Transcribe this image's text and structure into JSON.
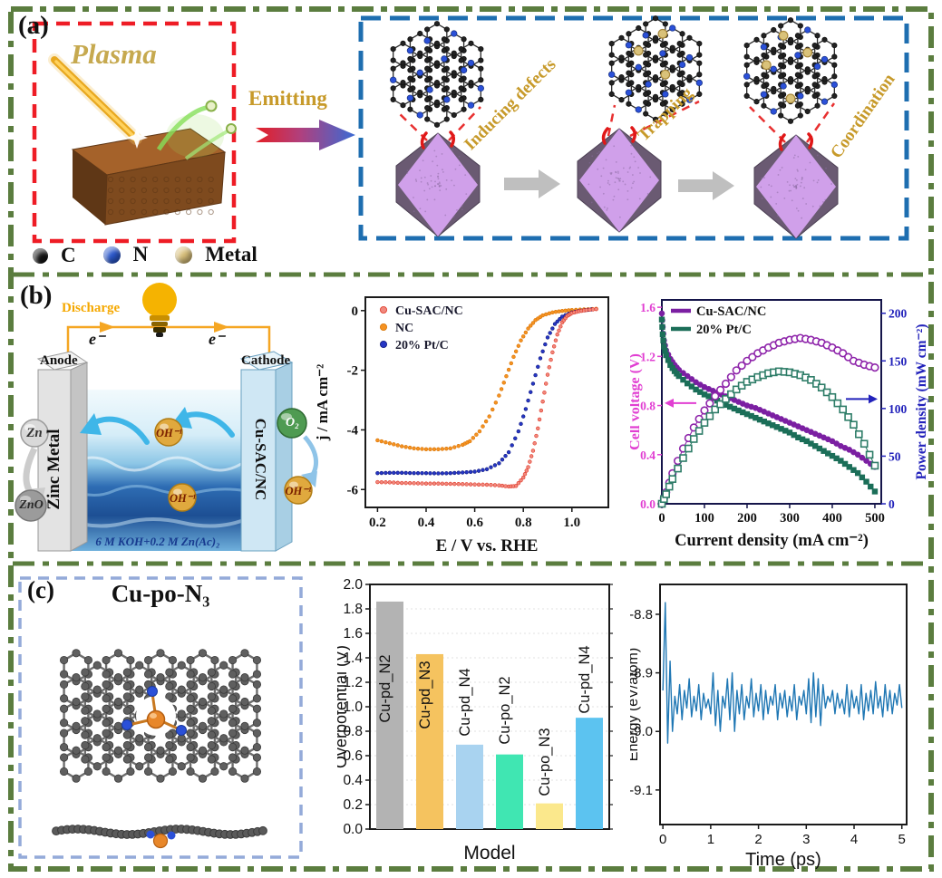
{
  "figure": {
    "panel_a": {
      "label": "(a)",
      "plasma_label": "Plasma",
      "emitting_label": "Emitting",
      "stage_labels": [
        "Inducing defects",
        "Trapping",
        "Coordination"
      ],
      "legend": [
        {
          "label": "C",
          "color": "#161616"
        },
        {
          "label": "N",
          "color": "#2b58cc"
        },
        {
          "label": "Metal",
          "color": "#d8bf7a"
        }
      ]
    },
    "panel_b": {
      "label": "(b)",
      "discharge_label": "Discharge",
      "electron_label": "e⁻",
      "anode_label": "Anode",
      "cathode_label": "Cathode",
      "anode_material": "Zinc Metal",
      "cathode_material": "Cu-SAC/NC",
      "zn_label": "Zn",
      "zno_label": "ZnO",
      "o2_label": "O₂",
      "oh_label": "OH⁻¹",
      "electrolyte_label": "6 M KOH+0.2 M Zn(Ac)₂"
    },
    "panel_c": {
      "label": "(c)",
      "title": "Cu-po-N₃"
    }
  },
  "colors": {
    "border_green": "#5b7d3f",
    "box_red": "#ee1c25",
    "box_blue": "#1e6eb0",
    "box_periwinkle": "#94aad9",
    "gold_text": "#c79a2a",
    "plasma_gold": "#c6a94f",
    "discharge_orange": "#f5a800",
    "wire_orange": "#f5a623",
    "zn_gray": "#d9d9d9",
    "zno_gray": "#9b9b9b",
    "o2_green": "#4f9b52",
    "oh_gold": "#e0a93e",
    "np_purple": "#d0a0ea",
    "np_dark": "#6a5a72",
    "cu_orange": "#e8872a",
    "n_blue": "#2b50d8",
    "c_gray": "#5f5f5f"
  },
  "chart_data": [
    {
      "id": "orr_polarization",
      "type": "scatter",
      "xlabel": "E / V vs. RHE",
      "ylabel": "j / mA cm⁻²",
      "xlim": [
        0.15,
        1.15
      ],
      "ylim": [
        -6.6,
        0.45
      ],
      "xticks": {
        "values": [
          0.2,
          0.4,
          0.6,
          0.8,
          1.0
        ],
        "labels": [
          "0.2",
          "0.4",
          "0.6",
          "0.8",
          "1.0"
        ]
      },
      "yticks": {
        "values": [
          0,
          -2,
          -4,
          -6
        ],
        "labels": [
          "0",
          "-2",
          "-4",
          "-6"
        ]
      },
      "legend_position": "top-left",
      "series": [
        {
          "name": "Cu-SAC/NC",
          "color": "#f0887e",
          "edge": "#e03522",
          "x": [
            0.2,
            0.25,
            0.3,
            0.35,
            0.4,
            0.45,
            0.5,
            0.55,
            0.6,
            0.65,
            0.7,
            0.74,
            0.77,
            0.8,
            0.82,
            0.84,
            0.86,
            0.88,
            0.9,
            0.92,
            0.94,
            0.96,
            0.98,
            1.0,
            1.03,
            1.06,
            1.1
          ],
          "y": [
            -5.75,
            -5.76,
            -5.78,
            -5.79,
            -5.8,
            -5.8,
            -5.81,
            -5.82,
            -5.83,
            -5.84,
            -5.86,
            -5.9,
            -5.88,
            -5.6,
            -5.25,
            -4.7,
            -3.95,
            -3.05,
            -2.15,
            -1.4,
            -0.8,
            -0.4,
            -0.18,
            -0.08,
            -0.02,
            0.02,
            0.05
          ]
        },
        {
          "name": "NC",
          "color": "#f59222",
          "edge": "#d87404",
          "x": [
            0.2,
            0.25,
            0.3,
            0.35,
            0.4,
            0.45,
            0.5,
            0.55,
            0.58,
            0.62,
            0.66,
            0.7,
            0.73,
            0.76,
            0.79,
            0.82,
            0.85,
            0.88,
            0.92,
            0.96,
            1.0,
            1.05,
            1.1
          ],
          "y": [
            -4.35,
            -4.45,
            -4.55,
            -4.62,
            -4.65,
            -4.65,
            -4.62,
            -4.5,
            -4.38,
            -4.05,
            -3.55,
            -2.85,
            -2.2,
            -1.55,
            -1.0,
            -0.6,
            -0.32,
            -0.16,
            -0.06,
            -0.01,
            0.02,
            0.04,
            0.06
          ]
        },
        {
          "name": "20% Pt/C",
          "color": "#2636c4",
          "edge": "#101a7e",
          "x": [
            0.2,
            0.25,
            0.3,
            0.35,
            0.4,
            0.45,
            0.5,
            0.55,
            0.6,
            0.65,
            0.7,
            0.74,
            0.78,
            0.81,
            0.84,
            0.87,
            0.9,
            0.93,
            0.96,
            1.0,
            1.04,
            1.08
          ],
          "y": [
            -5.45,
            -5.44,
            -5.44,
            -5.45,
            -5.45,
            -5.46,
            -5.45,
            -5.43,
            -5.4,
            -5.32,
            -5.12,
            -4.75,
            -4.05,
            -3.3,
            -2.45,
            -1.6,
            -0.9,
            -0.45,
            -0.2,
            -0.06,
            0.0,
            0.04
          ]
        }
      ]
    },
    {
      "id": "zab_discharge_power",
      "type": "dual",
      "xlabel": "Current density (mA cm⁻²)",
      "ylabel_left": "Cell voltage (V)",
      "ylabel_right": "Power density (mW cm⁻²)",
      "axis_color_left": "#e13fd2",
      "axis_color_right": "#2222bb",
      "xlim": [
        0,
        515
      ],
      "ylim_left": [
        0,
        1.66
      ],
      "ylim_right": [
        0,
        214
      ],
      "xticks": {
        "values": [
          0,
          100,
          200,
          300,
          400,
          500
        ],
        "labels": [
          "0",
          "100",
          "200",
          "300",
          "400",
          "500"
        ]
      },
      "yticks_left": {
        "values": [
          0.0,
          0.4,
          0.8,
          1.2,
          1.6
        ],
        "labels": [
          "0.0",
          "0.4",
          "0.8",
          "1.2",
          "1.6"
        ]
      },
      "yticks_right": {
        "values": [
          0,
          50,
          100,
          150,
          200
        ],
        "labels": [
          "0",
          "50",
          "100",
          "150",
          "200"
        ]
      },
      "legend": [
        {
          "label": "Cu-SAC/NC",
          "color": "#7b1fa2"
        },
        {
          "label": "20% Pt/C",
          "color": "#1b6e58"
        }
      ],
      "series": [
        {
          "name": "Cu-SAC/NC",
          "role": "voltage",
          "axis": "left",
          "marker": "circle",
          "open": false,
          "color": "#7b1fa2",
          "x": [
            0,
            2,
            5,
            10,
            20,
            30,
            40,
            60,
            80,
            100,
            120,
            140,
            160,
            180,
            200,
            220,
            240,
            260,
            280,
            300,
            320,
            340,
            360,
            380,
            400,
            420,
            440,
            460,
            480,
            500
          ],
          "y": [
            1.55,
            1.44,
            1.33,
            1.25,
            1.18,
            1.13,
            1.09,
            1.04,
            0.99,
            0.95,
            0.92,
            0.89,
            0.86,
            0.83,
            0.8,
            0.78,
            0.75,
            0.72,
            0.69,
            0.66,
            0.63,
            0.6,
            0.57,
            0.54,
            0.51,
            0.47,
            0.44,
            0.4,
            0.35,
            0.3
          ]
        },
        {
          "name": "20% Pt/C",
          "role": "voltage",
          "axis": "left",
          "marker": "square",
          "open": false,
          "color": "#1b6e58",
          "x": [
            0,
            2,
            5,
            10,
            20,
            30,
            40,
            60,
            80,
            100,
            120,
            140,
            160,
            180,
            200,
            220,
            240,
            260,
            280,
            300,
            320,
            340,
            360,
            380,
            400,
            420,
            440,
            460,
            480,
            500
          ],
          "y": [
            1.5,
            1.38,
            1.28,
            1.21,
            1.13,
            1.08,
            1.04,
            0.98,
            0.93,
            0.89,
            0.86,
            0.82,
            0.79,
            0.76,
            0.73,
            0.7,
            0.67,
            0.64,
            0.61,
            0.58,
            0.54,
            0.51,
            0.47,
            0.43,
            0.39,
            0.35,
            0.3,
            0.25,
            0.18,
            0.1
          ]
        },
        {
          "name": "Cu-SAC/NC",
          "role": "power",
          "axis": "right",
          "marker": "circle",
          "open": true,
          "color": "#8e24aa",
          "x": [
            0,
            10,
            25,
            50,
            75,
            100,
            125,
            150,
            175,
            200,
            225,
            250,
            275,
            300,
            325,
            350,
            375,
            400,
            425,
            450,
            475,
            500
          ],
          "y": [
            0,
            12,
            32,
            58,
            80,
            98,
            113,
            126,
            140,
            150,
            158,
            164,
            169,
            172,
            174,
            172,
            169,
            164,
            158,
            150,
            146,
            143
          ]
        },
        {
          "name": "20% Pt/C",
          "role": "power",
          "axis": "right",
          "marker": "square",
          "open": true,
          "color": "#2e7d68",
          "x": [
            0,
            10,
            25,
            50,
            75,
            100,
            125,
            150,
            175,
            200,
            225,
            250,
            275,
            300,
            325,
            350,
            375,
            400,
            425,
            450,
            475,
            500
          ],
          "y": [
            0,
            10,
            26,
            48,
            68,
            85,
            99,
            110,
            120,
            128,
            133,
            137,
            139,
            138,
            135,
            130,
            122,
            112,
            99,
            83,
            63,
            40
          ]
        }
      ]
    },
    {
      "id": "overpotential_models",
      "type": "bar",
      "title": "",
      "xlabel": "Model",
      "ylabel": "Overpotential (V)",
      "ylim": [
        0,
        2.0
      ],
      "yticks": {
        "values": [
          0.0,
          0.2,
          0.4,
          0.6,
          0.8,
          1.0,
          1.2,
          1.4,
          1.6,
          1.8,
          2.0
        ],
        "labels": [
          "0.0",
          "0.2",
          "0.4",
          "0.6",
          "0.8",
          "1.0",
          "1.2",
          "1.4",
          "1.6",
          "1.8",
          "2.0"
        ]
      },
      "categories": [
        "Cu-pd_N2",
        "Cu-pd_N3",
        "Cu-pd_N4",
        "Cu-po_N2",
        "Cu-po_N3",
        "Cu-pd_N4"
      ],
      "values": [
        1.86,
        1.43,
        0.69,
        0.61,
        0.21,
        0.91
      ],
      "colors": [
        "#b3b3b3",
        "#f5c35f",
        "#a9d3f0",
        "#40e6b2",
        "#fbe88c",
        "#5cc3f0"
      ],
      "grid": true
    },
    {
      "id": "aimd_energy",
      "type": "line",
      "xlabel": "Time (ps)",
      "ylabel": "Energy (eV/atom)",
      "color": "#1f77b4",
      "xlim": [
        -0.06,
        5.1
      ],
      "ylim": [
        -9.159,
        -8.749
      ],
      "xticks": {
        "values": [
          0,
          1,
          2,
          3,
          4,
          5
        ],
        "labels": [
          "0",
          "1",
          "2",
          "3",
          "4",
          "5"
        ]
      },
      "yticks": {
        "values": [
          -8.8,
          -8.9,
          -9.0,
          -9.1
        ],
        "labels": [
          "-8.8",
          "-8.9",
          "-9.0",
          "-9.1"
        ]
      },
      "x_start": 0,
      "x_step": 0.05,
      "values": [
        -8.93,
        -8.78,
        -9.02,
        -8.88,
        -9.0,
        -8.94,
        -8.97,
        -8.92,
        -8.98,
        -8.93,
        -8.96,
        -8.91,
        -8.975,
        -8.94,
        -8.965,
        -8.92,
        -8.98,
        -8.935,
        -8.96,
        -8.945,
        -8.97,
        -8.9,
        -8.99,
        -8.93,
        -9.0,
        -8.94,
        -8.96,
        -8.91,
        -8.98,
        -8.9,
        -9.0,
        -8.93,
        -8.97,
        -8.92,
        -8.98,
        -8.94,
        -8.96,
        -8.91,
        -8.975,
        -8.935,
        -8.965,
        -8.92,
        -8.98,
        -8.93,
        -8.97,
        -8.94,
        -8.955,
        -8.92,
        -8.98,
        -8.935,
        -8.96,
        -8.93,
        -8.975,
        -8.94,
        -8.965,
        -8.92,
        -8.98,
        -8.94,
        -8.955,
        -8.93,
        -8.97,
        -8.91,
        -8.985,
        -8.9,
        -8.975,
        -8.91,
        -8.99,
        -8.92,
        -8.96,
        -8.94,
        -8.95,
        -8.93,
        -8.97,
        -8.935,
        -8.96,
        -8.945,
        -8.97,
        -8.92,
        -8.975,
        -8.93,
        -8.96,
        -8.94,
        -8.97,
        -8.92,
        -8.98,
        -8.935,
        -8.965,
        -8.93,
        -8.97,
        -8.915,
        -8.96,
        -8.94,
        -8.975,
        -8.92,
        -8.965,
        -8.93,
        -8.97,
        -8.935,
        -8.955,
        -8.92,
        -8.96
      ]
    }
  ]
}
